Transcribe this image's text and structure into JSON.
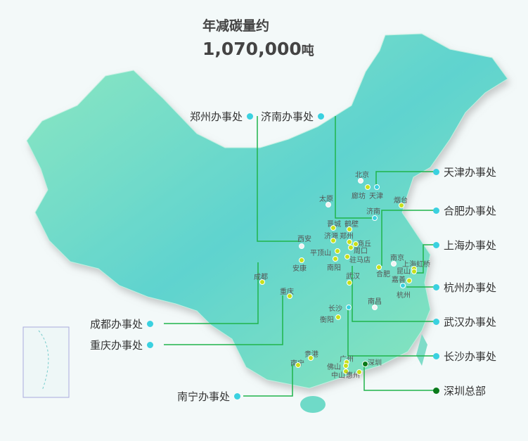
{
  "header": {
    "title": "年减碳量约",
    "value": "1,070,000",
    "unit": "吨"
  },
  "offices": [
    {
      "label": "郑州办事处"
    },
    {
      "label": "济南办事处"
    },
    {
      "label": "天津办事处"
    },
    {
      "label": "合肥办事处"
    },
    {
      "label": "上海办事处"
    },
    {
      "label": "杭州办事处"
    },
    {
      "label": "武汉办事处"
    },
    {
      "label": "长沙办事处"
    },
    {
      "label": "深圳总部"
    },
    {
      "label": "成都办事处"
    },
    {
      "label": "重庆办事处"
    },
    {
      "label": "南宁办事处"
    }
  ],
  "cities": [
    "北京",
    "廊坊",
    "天津",
    "太原",
    "烟台",
    "济南",
    "晋城",
    "鹤壁",
    "济源",
    "郑州",
    "商丘",
    "西安",
    "平顶山",
    "周口",
    "驻马店",
    "南阳",
    "安康",
    "南京",
    "上海虹桥",
    "合肥",
    "昆山",
    "嘉善",
    "杭州",
    "武汉",
    "南昌",
    "成都",
    "重庆",
    "长沙",
    "衡阳",
    "贵港",
    "广州",
    "佛山",
    "深圳",
    "中山",
    "惠州",
    "南宁"
  ],
  "colors": {
    "map_from": "#4ccbd6",
    "map_to": "#8fe8b9",
    "line": "#1fb44a",
    "office_dot": "#3ad1e0",
    "hq_dot": "#0a7a1a",
    "city_dot": "#c7e01a"
  }
}
